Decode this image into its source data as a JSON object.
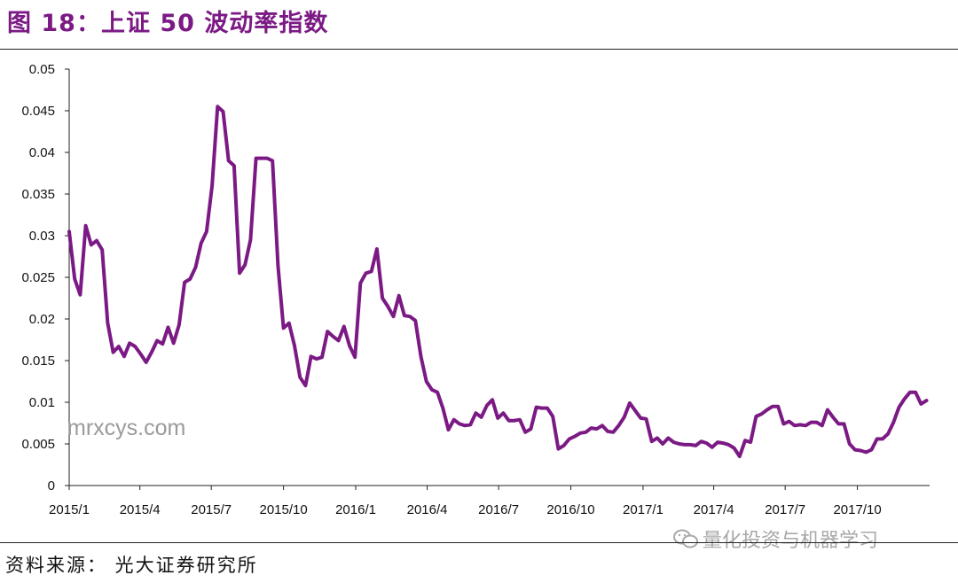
{
  "figure": {
    "title": "图 18：上证 50 波动率指数",
    "title_color": "#7B1A84",
    "source": "资料来源：  光大证券研究所",
    "watermark_text": "mrxcys.com",
    "badge_text": "量化投资与机器学习",
    "badge_icon": "wechat-icon"
  },
  "chart_data": {
    "type": "line",
    "title": "",
    "xlabel": "",
    "ylabel": "",
    "ylim": [
      0,
      0.05
    ],
    "yticks": [
      "0",
      "0.005",
      "0.01",
      "0.015",
      "0.02",
      "0.025",
      "0.03",
      "0.035",
      "0.04",
      "0.045",
      "0.05"
    ],
    "xticks": [
      "2015/1",
      "2015/4",
      "2015/7",
      "2015/10",
      "2016/1",
      "2016/4",
      "2016/7",
      "2016/10",
      "2017/1",
      "2017/4",
      "2017/7",
      "2017/10"
    ],
    "xlim": [
      "2015-01-01",
      "2018-01-01"
    ],
    "grid": false,
    "color": "#7B1A84",
    "series": [
      {
        "x": [
          "2015-01-01",
          "2015-01-08",
          "2015-01-15",
          "2015-01-22",
          "2015-01-29",
          "2015-02-05",
          "2015-02-12",
          "2015-02-19",
          "2015-02-26",
          "2015-03-05",
          "2015-03-12",
          "2015-03-19",
          "2015-03-26",
          "2015-04-02",
          "2015-04-09",
          "2015-04-16",
          "2015-04-23",
          "2015-04-30",
          "2015-05-07",
          "2015-05-14",
          "2015-05-21",
          "2015-05-28",
          "2015-06-04",
          "2015-06-11",
          "2015-06-18",
          "2015-06-25",
          "2015-07-02",
          "2015-07-09",
          "2015-07-16",
          "2015-07-23",
          "2015-07-30",
          "2015-08-06",
          "2015-08-13",
          "2015-08-20",
          "2015-08-27",
          "2015-09-03",
          "2015-09-10",
          "2015-09-17",
          "2015-09-24",
          "2015-10-01",
          "2015-10-08",
          "2015-10-15",
          "2015-10-22",
          "2015-10-29",
          "2015-11-05",
          "2015-11-12",
          "2015-11-19",
          "2015-11-26",
          "2015-12-03",
          "2015-12-10",
          "2015-12-17",
          "2015-12-24",
          "2015-12-31",
          "2016-01-07",
          "2016-01-14",
          "2016-01-21",
          "2016-01-28",
          "2016-02-04",
          "2016-02-11",
          "2016-02-18",
          "2016-02-25",
          "2016-03-03",
          "2016-03-10",
          "2016-03-17",
          "2016-03-24",
          "2016-03-31",
          "2016-04-07",
          "2016-04-14",
          "2016-04-21",
          "2016-04-28",
          "2016-05-05",
          "2016-05-12",
          "2016-05-19",
          "2016-05-26",
          "2016-06-02",
          "2016-06-09",
          "2016-06-16",
          "2016-06-23",
          "2016-06-30",
          "2016-07-07",
          "2016-07-14",
          "2016-07-21",
          "2016-07-28",
          "2016-08-04",
          "2016-08-11",
          "2016-08-18",
          "2016-08-25",
          "2016-09-01",
          "2016-09-08",
          "2016-09-15",
          "2016-09-22",
          "2016-09-29",
          "2016-10-06",
          "2016-10-13",
          "2016-10-20",
          "2016-10-27",
          "2016-11-03",
          "2016-11-10",
          "2016-11-17",
          "2016-11-24",
          "2016-12-01",
          "2016-12-08",
          "2016-12-15",
          "2016-12-22",
          "2016-12-29",
          "2017-01-05",
          "2017-01-12",
          "2017-01-19",
          "2017-01-26",
          "2017-02-02",
          "2017-02-09",
          "2017-02-16",
          "2017-02-23",
          "2017-03-02",
          "2017-03-09",
          "2017-03-16",
          "2017-03-23",
          "2017-03-30",
          "2017-04-06",
          "2017-04-13",
          "2017-04-20",
          "2017-04-27",
          "2017-05-04",
          "2017-05-11",
          "2017-05-18",
          "2017-05-25",
          "2017-06-01",
          "2017-06-08",
          "2017-06-15",
          "2017-06-22",
          "2017-06-29",
          "2017-07-06",
          "2017-07-13",
          "2017-07-20",
          "2017-07-27",
          "2017-08-03",
          "2017-08-10",
          "2017-08-17",
          "2017-08-24",
          "2017-08-31",
          "2017-09-07",
          "2017-09-14",
          "2017-09-21",
          "2017-09-28",
          "2017-10-05",
          "2017-10-12",
          "2017-10-19",
          "2017-10-26",
          "2017-11-02",
          "2017-11-09",
          "2017-11-16",
          "2017-11-23",
          "2017-11-30",
          "2017-12-07",
          "2017-12-14",
          "2017-12-21",
          "2017-12-28"
        ],
        "y": [
          0.0305,
          0.0248,
          0.0229,
          0.0312,
          0.0289,
          0.0294,
          0.0283,
          0.0195,
          0.016,
          0.0167,
          0.0155,
          0.0171,
          0.0167,
          0.0158,
          0.0148,
          0.016,
          0.0174,
          0.017,
          0.019,
          0.0171,
          0.0193,
          0.0244,
          0.0248,
          0.0262,
          0.0291,
          0.0305,
          0.036,
          0.0455,
          0.0449,
          0.039,
          0.0384,
          0.0255,
          0.0265,
          0.0295,
          0.0393,
          0.0393,
          0.0393,
          0.039,
          0.0264,
          0.0189,
          0.0195,
          0.0168,
          0.013,
          0.012,
          0.0155,
          0.0152,
          0.0154,
          0.0185,
          0.0179,
          0.0174,
          0.0191,
          0.0168,
          0.0154,
          0.0243,
          0.0255,
          0.0257,
          0.0284,
          0.0225,
          0.0215,
          0.0203,
          0.0228,
          0.0204,
          0.0203,
          0.0198,
          0.0155,
          0.0125,
          0.0115,
          0.0112,
          0.0093,
          0.0067,
          0.0079,
          0.0074,
          0.0072,
          0.0073,
          0.0087,
          0.0082,
          0.0096,
          0.0103,
          0.0081,
          0.0087,
          0.0078,
          0.0078,
          0.0079,
          0.0064,
          0.0068,
          0.0094,
          0.0093,
          0.0093,
          0.0083,
          0.0044,
          0.0048,
          0.0056,
          0.0059,
          0.0063,
          0.0064,
          0.0069,
          0.0068,
          0.0072,
          0.0065,
          0.0064,
          0.0072,
          0.0082,
          0.0099,
          0.009,
          0.0081,
          0.008,
          0.0053,
          0.0057,
          0.005,
          0.0057,
          0.0052,
          0.005,
          0.0049,
          0.0049,
          0.0048,
          0.0053,
          0.0051,
          0.0046,
          0.0052,
          0.0051,
          0.0049,
          0.0045,
          0.0035,
          0.0054,
          0.0052,
          0.0083,
          0.0086,
          0.0091,
          0.0095,
          0.0095,
          0.0074,
          0.0077,
          0.0072,
          0.0073,
          0.0072,
          0.0076,
          0.0076,
          0.0072,
          0.0091,
          0.0082,
          0.0074,
          0.0074,
          0.005,
          0.0043,
          0.0042,
          0.004,
          0.0043,
          0.0056,
          0.0056,
          0.0062,
          0.0076,
          0.0094,
          0.0104,
          0.0112,
          0.0112,
          0.0098,
          0.0102
        ]
      }
    ]
  }
}
